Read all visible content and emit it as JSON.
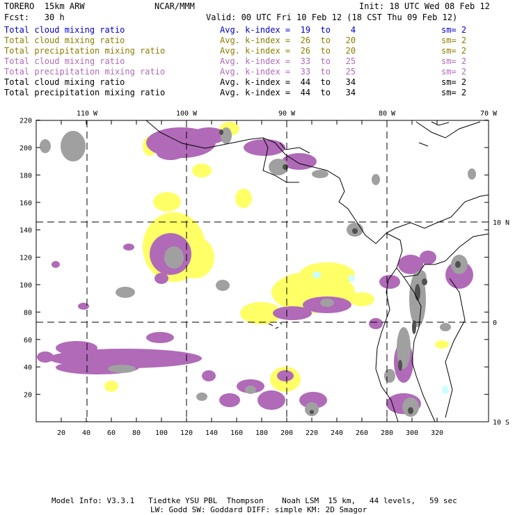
{
  "header": {
    "model": "TORERO  15km ARW",
    "org": "NCAR/MMM",
    "init": "Init: 18 UTC Wed 08 Feb 12",
    "fcst": "Fcst:   30 h",
    "valid": "Valid: 00 UTC Fri 10 Feb 12 (18 CST Thu 09 Feb 12)"
  },
  "legend": [
    {
      "field": "Total cloud mixing ratio",
      "level": "Avg. k-index =  19  to    4",
      "sm": "sm= 2",
      "color": "#0000cc"
    },
    {
      "field": "Total cloud mixing ratio",
      "level": "Avg. k-index =  26  to   20",
      "sm": "sm= 2",
      "color": "#8b7d00"
    },
    {
      "field": "Total precipitation mixing ratio",
      "level": "Avg. k-index =  26  to   20",
      "sm": "sm= 2",
      "color": "#8b7d00"
    },
    {
      "field": "Total cloud mixing ratio",
      "level": "Avg. k-index =  33  to   25",
      "sm": "sm= 2",
      "color": "#b06ab8"
    },
    {
      "field": "Total precipitation mixing ratio",
      "level": "Avg. k-index =  33  to   25",
      "sm": "sm= 2",
      "color": "#b06ab8"
    },
    {
      "field": "Total cloud mixing ratio",
      "level": "Avg. k-index =  44  to   34",
      "sm": "sm= 2",
      "color": "#000000"
    },
    {
      "field": "Total precipitation mixing ratio",
      "level": "Avg. k-index =  44  to   34",
      "sm": "sm= 2",
      "color": "#000000"
    }
  ],
  "map": {
    "lon_labels": [
      "110 W",
      "100 W",
      "90 W",
      "80 W",
      "70 W"
    ],
    "lat_labels": [
      "10 N",
      "0",
      "10 S"
    ],
    "x_ticks": [
      "20",
      "40",
      "60",
      "80",
      "100",
      "120",
      "140",
      "160",
      "180",
      "200",
      "220",
      "240",
      "260",
      "280",
      "300",
      "320"
    ],
    "y_ticks": [
      "20",
      "40",
      "60",
      "80",
      "100",
      "120",
      "140",
      "160",
      "180",
      "200",
      "220"
    ],
    "colors": {
      "yellow": "#ffff66",
      "purple": "#b06ab8",
      "gray": "#a0a0a0",
      "dark": "#505050",
      "cyan": "#ccffff"
    }
  },
  "footer": {
    "line1": "Model Info: V3.3.1   Tiedtke YSU PBL  Thompson    Noah LSM  15 km,   44 levels,   59 sec",
    "line2": "LW: Godd SW: Goddard DIFF: simple KM: 2D Smagor"
  }
}
